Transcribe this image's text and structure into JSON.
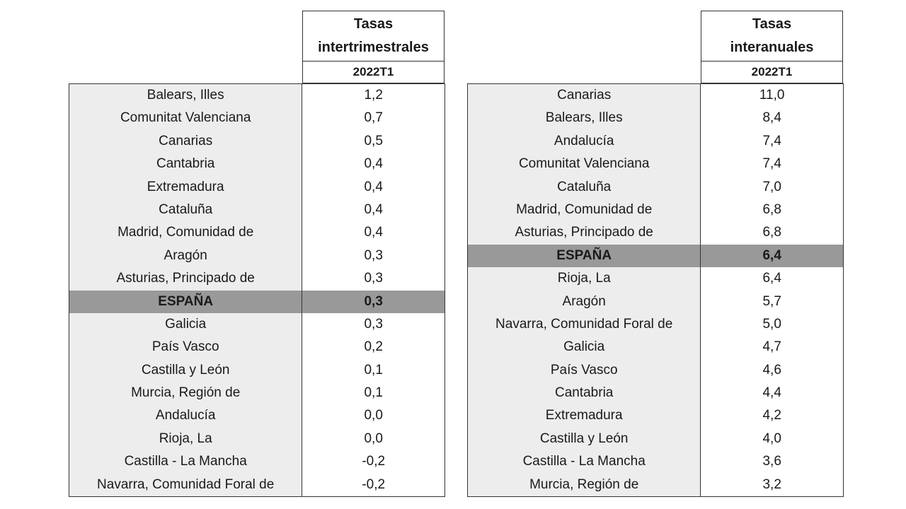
{
  "left_table": {
    "title_line1": "Tasas",
    "title_line2": "intertrimestrales",
    "period": "2022T1",
    "rows": [
      {
        "region": "Balears, Illes",
        "value": "1,2"
      },
      {
        "region": "Comunitat Valenciana",
        "value": "0,7"
      },
      {
        "region": "Canarias",
        "value": "0,5"
      },
      {
        "region": "Cantabria",
        "value": "0,4"
      },
      {
        "region": "Extremadura",
        "value": "0,4"
      },
      {
        "region": "Cataluña",
        "value": "0,4"
      },
      {
        "region": "Madrid, Comunidad de",
        "value": "0,4"
      },
      {
        "region": "Aragón",
        "value": "0,3"
      },
      {
        "region": "Asturias, Principado de",
        "value": "0,3"
      },
      {
        "region": "ESPAÑA",
        "value": "0,3",
        "highlight": true
      },
      {
        "region": "Galicia",
        "value": "0,3"
      },
      {
        "region": "País Vasco",
        "value": "0,2"
      },
      {
        "region": "Castilla y León",
        "value": "0,1"
      },
      {
        "region": "Murcia, Región de",
        "value": "0,1"
      },
      {
        "region": "Andalucía",
        "value": "0,0"
      },
      {
        "region": "Rioja, La",
        "value": "0,0"
      },
      {
        "region": "Castilla - La Mancha",
        "value": "-0,2"
      },
      {
        "region": "Navarra, Comunidad Foral de",
        "value": "-0,2"
      }
    ]
  },
  "right_table": {
    "title_line1": "Tasas",
    "title_line2": "interanuales",
    "period": "2022T1",
    "rows": [
      {
        "region": "Canarias",
        "value": "11,0"
      },
      {
        "region": "Balears, Illes",
        "value": "8,4"
      },
      {
        "region": "Andalucía",
        "value": "7,4"
      },
      {
        "region": "Comunitat Valenciana",
        "value": "7,4"
      },
      {
        "region": "Cataluña",
        "value": "7,0"
      },
      {
        "region": "Madrid, Comunidad de",
        "value": "6,8"
      },
      {
        "region": "Asturias, Principado de",
        "value": "6,8"
      },
      {
        "region": "ESPAÑA",
        "value": "6,4",
        "highlight": true
      },
      {
        "region": "Rioja, La",
        "value": "6,4"
      },
      {
        "region": "Aragón",
        "value": "5,7"
      },
      {
        "region": "Navarra, Comunidad Foral de",
        "value": "5,0"
      },
      {
        "region": "Galicia",
        "value": "4,7"
      },
      {
        "region": "País Vasco",
        "value": "4,6"
      },
      {
        "region": "Cantabria",
        "value": "4,4"
      },
      {
        "region": "Extremadura",
        "value": "4,2"
      },
      {
        "region": "Castilla y León",
        "value": "4,0"
      },
      {
        "region": "Castilla - La Mancha",
        "value": "3,6"
      },
      {
        "region": "Murcia, Región de",
        "value": "3,2"
      }
    ]
  },
  "colors": {
    "name_column_bg": "#ededed",
    "highlight_bg": "#999999",
    "border": "#333333"
  }
}
